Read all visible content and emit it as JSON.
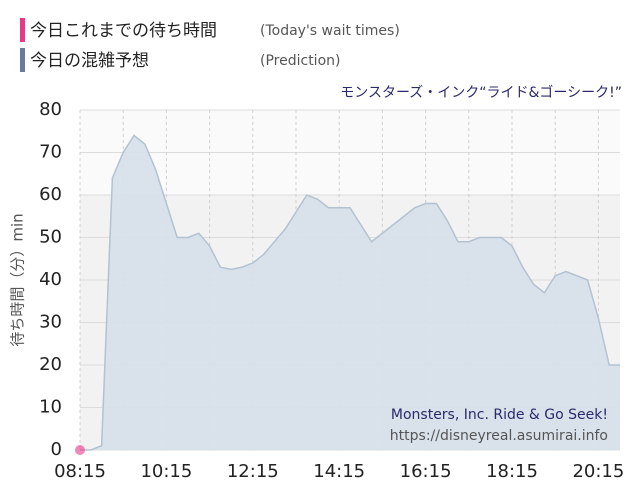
{
  "chart_data": {
    "type": "area",
    "title": "モンスターズ・インク“ライド&ゴーシーク!”",
    "ylabel": "待ち時間（分）min",
    "watermark": [
      "Monsters, Inc. Ride & Go Seek!",
      "https://disneyreal.asumirai.info"
    ],
    "series": [
      {
        "name": "今日これまでの待ち時間",
        "name_en": "(Today's wait times)",
        "color": "#e8388a",
        "kind": "points",
        "x": [
          495
        ],
        "values": [
          0
        ]
      },
      {
        "name": "今日の混雑予想",
        "name_en": "(Prediction)",
        "color": "#6a7a9c",
        "fill": "#d6e0ea",
        "stroke": "#b3c2d2",
        "kind": "area",
        "x": [
          495,
          510,
          525,
          540,
          555,
          570,
          585,
          600,
          615,
          630,
          645,
          660,
          675,
          690,
          705,
          720,
          735,
          750,
          765,
          780,
          795,
          810,
          825,
          840,
          855,
          870,
          885,
          900,
          915,
          930,
          945,
          960,
          975,
          990,
          1005,
          1020,
          1035,
          1050,
          1065,
          1080,
          1095,
          1110,
          1125,
          1140,
          1155,
          1170,
          1185,
          1200,
          1215,
          1230,
          1245
        ],
        "values": [
          0,
          0,
          1,
          64,
          70,
          74,
          72,
          66,
          58,
          50,
          50,
          51,
          48,
          43,
          42.5,
          43,
          44,
          46,
          49,
          52,
          56,
          60,
          59,
          57,
          57,
          57,
          53,
          49,
          51,
          53,
          55,
          57,
          58,
          58,
          54,
          49,
          49,
          50,
          50,
          50,
          48,
          43,
          39,
          37,
          41,
          42,
          41,
          40,
          31,
          20,
          20
        ]
      }
    ],
    "xlim": [
      495,
      1245
    ],
    "ylim": [
      0,
      80
    ],
    "xticks": [
      {
        "value": 495,
        "label": "08:15"
      },
      {
        "value": 615,
        "label": "10:15"
      },
      {
        "value": 735,
        "label": "12:15"
      },
      {
        "value": 855,
        "label": "14:15"
      },
      {
        "value": 975,
        "label": "16:15"
      },
      {
        "value": 1095,
        "label": "18:15"
      },
      {
        "value": 1215,
        "label": "20:15"
      }
    ],
    "xgrid_minor": [
      555,
      675,
      795,
      915,
      1035,
      1155
    ],
    "yticks": [
      0,
      10,
      20,
      30,
      40,
      50,
      60,
      70,
      80
    ],
    "grid": true
  }
}
